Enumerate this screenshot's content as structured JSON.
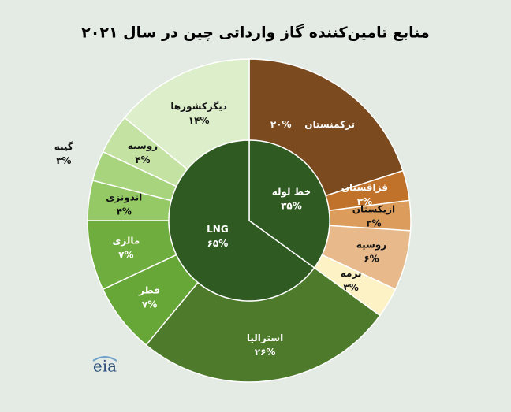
{
  "chart_data": {
    "type": "sunburst",
    "title": "منابع تامین‌کننده گاز وارداتی چین در سال ۲۰۲۱",
    "inner": {
      "categories": [
        "خط لوله",
        "LNG"
      ],
      "values": [
        35,
        65
      ],
      "value_labels": [
        "۳۵%",
        "۶۵%"
      ],
      "colors": [
        "#2f5a22",
        "#2f5a22"
      ]
    },
    "outer": {
      "categories": [
        "ترکمنستان",
        "قزاقستان",
        "ازبکستان",
        "روسیه",
        "برمه",
        "استرالیا",
        "قطر",
        "مالزی",
        "اندونزی",
        "گینه",
        "روسیه",
        "دیگرکشورها"
      ],
      "values": [
        20,
        3,
        3,
        6,
        3,
        26,
        7,
        7,
        4,
        3,
        4,
        14
      ],
      "value_labels": [
        "۲۰%",
        "۳%",
        "۳%",
        "۶%",
        "۳%",
        "۲۶%",
        "۷%",
        "۷%",
        "۴%",
        "۳%",
        "۴%",
        "۱۴%"
      ],
      "colors": [
        "#7b4a1e",
        "#c0722a",
        "#dc9d5c",
        "#e8b98a",
        "#fdf2c6",
        "#4e7b2b",
        "#67a737",
        "#6fae3e",
        "#95c966",
        "#a8d47e",
        "#c4e3a2",
        "#ddeecb"
      ]
    },
    "source": "eia"
  }
}
